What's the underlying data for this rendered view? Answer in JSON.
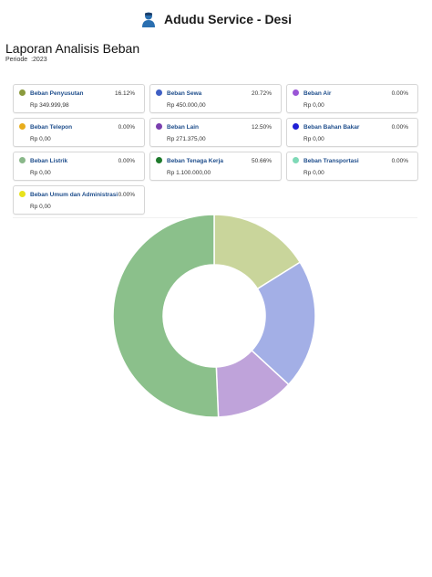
{
  "header": {
    "app_title": "Adudu Service - Desi",
    "icon": "user-avatar-icon"
  },
  "report": {
    "title": "Laporan Analisis Beban",
    "period_label": "Periode",
    "period_value": ":2023"
  },
  "chart_data": {
    "type": "pie",
    "categories": [
      "Beban Penyusutan",
      "Beban Sewa",
      "Beban Air",
      "Beban Telepon",
      "Beban Lain",
      "Beban Bahan Bakar",
      "Beban Listrik",
      "Beban Tenaga Kerja",
      "Beban Transportasi",
      "Beban Umum dan Administrasi"
    ],
    "values": [
      16.12,
      20.72,
      0.0,
      0.0,
      12.5,
      0.0,
      0.0,
      50.66,
      0.0,
      0.0
    ],
    "amounts": [
      "Rp 349.999,98",
      "Rp 450.000,00",
      "Rp 0,00",
      "Rp 0,00",
      "Rp 271.375,00",
      "Rp 0,00",
      "Rp 0,00",
      "Rp 1.100.000,00",
      "Rp 0,00",
      "Rp 0,00"
    ],
    "percent_labels": [
      "16.12%",
      "20.72%",
      "0.00%",
      "0.00%",
      "12.50%",
      "0.00%",
      "0.00%",
      "50.66%",
      "0.00%",
      "0.00%"
    ],
    "legend_colors": [
      "#8a9a3c",
      "#3f5fc4",
      "#9a55d6",
      "#e8ad1c",
      "#7a3fae",
      "#1f1fd6",
      "#8ab88a",
      "#1e7a2c",
      "#7fd9b7",
      "#e8e21c"
    ],
    "slice_colors": [
      "#c9d59b",
      "#a3afe6",
      "#bfa3da",
      "#e8ad1c",
      "#bfa3da",
      "#1f1fd6",
      "#8ab88a",
      "#8bc08b",
      "#7fd9b7",
      "#e8e21c"
    ],
    "style": "donut"
  }
}
